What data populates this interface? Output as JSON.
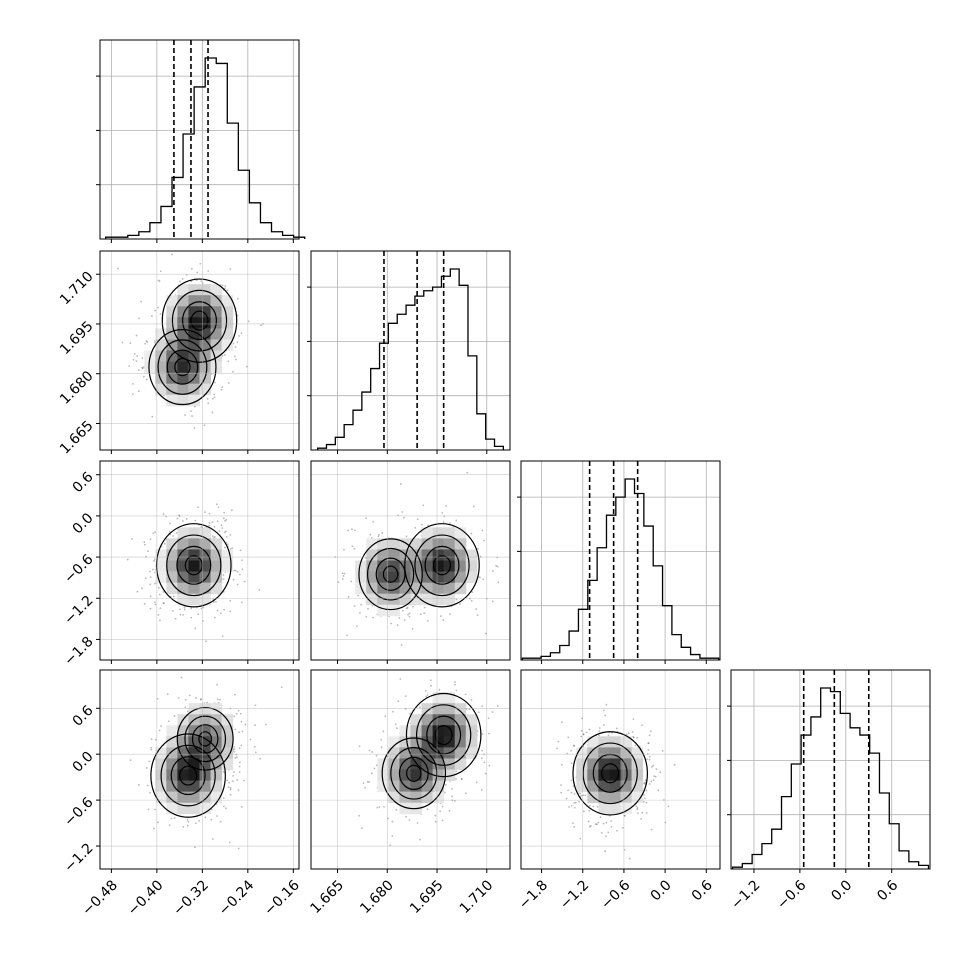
{
  "chart_data": {
    "type": "corner",
    "grid": true,
    "parameters": [
      {
        "range": [
          -0.5,
          -0.15
        ],
        "ticks": [
          -0.48,
          -0.4,
          -0.32,
          -0.24,
          -0.16
        ],
        "tick_labels": [
          "−0.48",
          "−0.40",
          "−0.32",
          "−0.24",
          "−0.16"
        ]
      },
      {
        "range": [
          1.657,
          1.717
        ],
        "ticks": [
          1.665,
          1.68,
          1.695,
          1.71
        ],
        "tick_labels": [
          "1.665",
          "1.680",
          "1.695",
          "1.710"
        ]
      },
      {
        "range": [
          -2.1,
          0.8
        ],
        "ticks": [
          -1.8,
          -1.2,
          -0.6,
          0.0,
          0.6
        ],
        "tick_labels": [
          "−1.8",
          "−1.2",
          "−0.6",
          "0.0",
          "0.6"
        ]
      },
      {
        "range": [
          -1.5,
          1.1
        ],
        "ticks": [
          -1.2,
          -0.6,
          0.0,
          0.6
        ],
        "tick_labels": [
          "−1.2",
          "−0.6",
          "0.0",
          "0.6"
        ]
      }
    ],
    "histograms": [
      {
        "param": 0,
        "bin_edges": [
          -0.49,
          -0.14
        ],
        "counts": [
          1,
          1,
          2,
          4,
          9,
          18,
          34,
          58,
          84,
          100,
          97,
          64,
          38,
          20,
          9,
          4,
          2,
          1
        ],
        "quantiles": [
          -0.37,
          -0.34,
          -0.31
        ]
      },
      {
        "param": 1,
        "bin_edges": [
          1.659,
          1.715
        ],
        "counts": [
          1,
          3,
          7,
          14,
          22,
          32,
          45,
          59,
          70,
          75,
          80,
          85,
          88,
          90,
          96,
          100,
          91,
          52,
          20,
          6,
          2
        ],
        "quantiles": [
          1.679,
          1.689,
          1.697
        ]
      },
      {
        "param": 2,
        "bin_edges": [
          -2.08,
          0.78
        ],
        "counts": [
          1,
          1,
          2,
          4,
          8,
          16,
          28,
          44,
          62,
          80,
          90,
          100,
          92,
          74,
          52,
          30,
          14,
          7,
          3,
          1,
          1
        ],
        "quantiles": [
          -1.1,
          -0.75,
          -0.4
        ]
      },
      {
        "param": 3,
        "bin_edges": [
          -1.48,
          1.08
        ],
        "counts": [
          1,
          3,
          8,
          14,
          22,
          40,
          58,
          74,
          84,
          100,
          98,
          86,
          78,
          74,
          64,
          42,
          25,
          10,
          4,
          2
        ],
        "quantiles": [
          -0.55,
          -0.15,
          0.3
        ]
      }
    ],
    "pairs": [
      {
        "x": 0,
        "y": 1,
        "peaks": [
          {
            "x": -0.325,
            "y": 1.696,
            "w": 1.0
          },
          {
            "x": -0.355,
            "y": 1.682,
            "w": 0.9
          }
        ]
      },
      {
        "x": 0,
        "y": 2,
        "peaks": [
          {
            "x": -0.335,
            "y": -0.72,
            "w": 1.0
          }
        ]
      },
      {
        "x": 1,
        "y": 2,
        "peaks": [
          {
            "x": 1.6965,
            "y": -0.72,
            "w": 1.0
          },
          {
            "x": 1.681,
            "y": -0.85,
            "w": 0.85
          }
        ]
      },
      {
        "x": 0,
        "y": 3,
        "peaks": [
          {
            "x": -0.345,
            "y": -0.28,
            "w": 1.0
          },
          {
            "x": -0.315,
            "y": 0.2,
            "w": 0.75
          }
        ]
      },
      {
        "x": 1,
        "y": 3,
        "peaks": [
          {
            "x": 1.697,
            "y": 0.25,
            "w": 1.0
          },
          {
            "x": 1.688,
            "y": -0.25,
            "w": 0.85
          }
        ]
      },
      {
        "x": 2,
        "y": 3,
        "peaks": [
          {
            "x": -0.8,
            "y": -0.25,
            "w": 1.0
          }
        ]
      }
    ]
  }
}
